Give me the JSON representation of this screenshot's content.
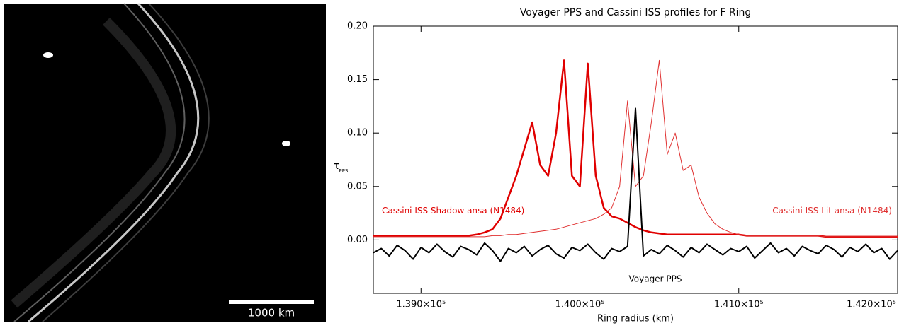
{
  "image": {
    "scale_label": "1000 km"
  },
  "chart_data": {
    "type": "line",
    "title": "Voyager PPS and Cassini ISS profiles for F Ring",
    "xlabel": "Ring radius (km)",
    "ylabel": "τ",
    "ylabel_subscript": "PPS",
    "xlim": [
      138700,
      142000
    ],
    "xticks": [
      {
        "value": 139000,
        "label": "1.390×10⁵"
      },
      {
        "value": 140000,
        "label": "1.400×10⁵"
      },
      {
        "value": 141000,
        "label": "1.410×10⁵"
      },
      {
        "value": 142000,
        "label": "1.420×10⁵"
      }
    ],
    "ylim": [
      -0.05,
      0.2
    ],
    "yticks": [
      {
        "value": 0,
        "label": "0.00"
      },
      {
        "value": 0.05,
        "label": "0.05"
      },
      {
        "value": 0.1,
        "label": "0.10"
      },
      {
        "value": 0.15,
        "label": "0.15"
      },
      {
        "value": 0.2,
        "label": "0.20"
      }
    ],
    "x": [
      138700,
      138750,
      138800,
      138850,
      138900,
      138950,
      139000,
      139050,
      139100,
      139150,
      139200,
      139250,
      139300,
      139350,
      139400,
      139450,
      139500,
      139550,
      139600,
      139650,
      139700,
      139750,
      139800,
      139850,
      139900,
      139950,
      140000,
      140050,
      140100,
      140150,
      140200,
      140250,
      140300,
      140350,
      140400,
      140450,
      140500,
      140550,
      140600,
      140650,
      140700,
      140750,
      140800,
      140850,
      140900,
      140950,
      141000,
      141050,
      141100,
      141150,
      141200,
      141250,
      141300,
      141350,
      141400,
      141450,
      141500,
      141550,
      141600,
      141650,
      141700,
      141750,
      141800,
      141850,
      141900,
      141950,
      142000
    ],
    "series": [
      {
        "name": "Cassini ISS Shadow ansa (N1484)",
        "color": "#e00000",
        "values": [
          0.004,
          0.004,
          0.004,
          0.004,
          0.004,
          0.004,
          0.004,
          0.004,
          0.004,
          0.004,
          0.004,
          0.004,
          0.004,
          0.005,
          0.007,
          0.01,
          0.02,
          0.04,
          0.06,
          0.085,
          0.11,
          0.07,
          0.06,
          0.1,
          0.168,
          0.06,
          0.05,
          0.165,
          0.06,
          0.03,
          0.022,
          0.02,
          0.016,
          0.012,
          0.009,
          0.007,
          0.006,
          0.005,
          0.005,
          0.005,
          0.005,
          0.005,
          0.005,
          0.005,
          0.005,
          0.005,
          0.005,
          0.004,
          0.004,
          0.004,
          0.004,
          0.004,
          0.004,
          0.004,
          0.004,
          0.004,
          0.004,
          0.003,
          0.003,
          0.003,
          0.003,
          0.003,
          0.003,
          0.003,
          0.003,
          0.003,
          0.003
        ]
      },
      {
        "name": "Cassini ISS Lit ansa (N1484)",
        "color": "#e03030",
        "values": [
          0.003,
          0.003,
          0.003,
          0.003,
          0.003,
          0.003,
          0.003,
          0.003,
          0.003,
          0.003,
          0.003,
          0.003,
          0.003,
          0.003,
          0.003,
          0.004,
          0.004,
          0.005,
          0.005,
          0.006,
          0.007,
          0.008,
          0.009,
          0.01,
          0.012,
          0.014,
          0.016,
          0.018,
          0.02,
          0.024,
          0.03,
          0.05,
          0.13,
          0.05,
          0.06,
          0.11,
          0.168,
          0.08,
          0.1,
          0.065,
          0.07,
          0.04,
          0.025,
          0.015,
          0.01,
          0.007,
          0.005,
          0.004,
          0.004,
          0.004,
          0.004,
          0.004,
          0.004,
          0.004,
          0.004,
          0.004,
          0.004,
          0.003,
          0.003,
          0.003,
          0.003,
          0.003,
          0.003,
          0.003,
          0.003,
          0.003,
          0.003
        ]
      },
      {
        "name": "Voyager PPS",
        "color": "#000000",
        "values": [
          -0.012,
          -0.008,
          -0.015,
          -0.005,
          -0.01,
          -0.018,
          -0.007,
          -0.012,
          -0.004,
          -0.011,
          -0.016,
          -0.006,
          -0.009,
          -0.014,
          -0.003,
          -0.01,
          -0.02,
          -0.008,
          -0.012,
          -0.006,
          -0.015,
          -0.009,
          -0.005,
          -0.013,
          -0.017,
          -0.007,
          -0.01,
          -0.004,
          -0.012,
          -0.018,
          -0.008,
          -0.011,
          -0.006,
          0.123,
          -0.015,
          -0.009,
          -0.013,
          -0.005,
          -0.01,
          -0.016,
          -0.007,
          -0.012,
          -0.004,
          -0.009,
          -0.014,
          -0.008,
          -0.011,
          -0.006,
          -0.017,
          -0.01,
          -0.003,
          -0.012,
          -0.008,
          -0.015,
          -0.006,
          -0.01,
          -0.013,
          -0.005,
          -0.009,
          -0.016,
          -0.007,
          -0.011,
          -0.004,
          -0.012,
          -0.008,
          -0.018,
          -0.01
        ]
      }
    ]
  }
}
